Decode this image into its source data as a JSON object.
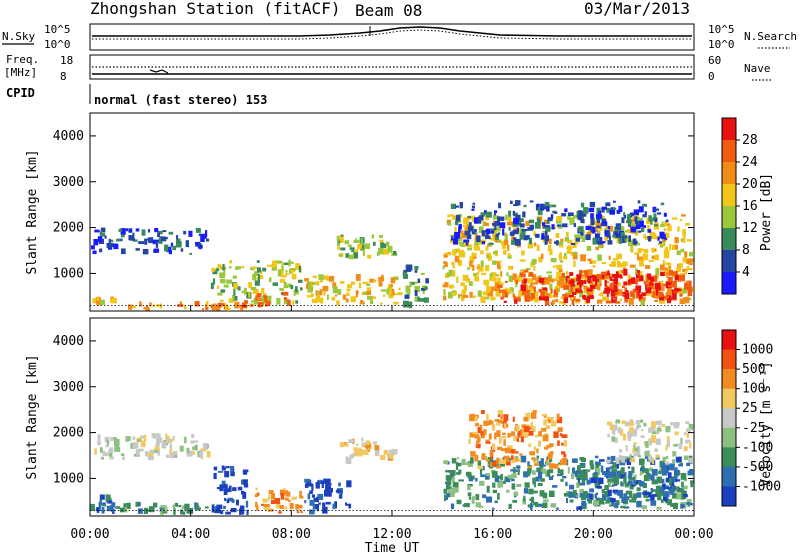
{
  "header": {
    "station": "Zhongshan Station (fitACF)",
    "beam": "Beam 08",
    "date": "03/Mar/2013"
  },
  "status": {
    "nsky_label": "N.Sky",
    "nsky_ticks": [
      "10^5",
      "10^0"
    ],
    "nsearch_label": "N.Search",
    "freq_label_line1": "Freq.",
    "freq_label_line2": "[MHz]",
    "freq_ticks": [
      "18",
      "8"
    ],
    "nave_label": "Nave",
    "nave_ticks": [
      "60",
      "0"
    ],
    "cpid_label": "CPID",
    "cpid_value": "normal (fast stereo) 153"
  },
  "chart_data": [
    {
      "type": "heatmap",
      "name": "power",
      "ylabel": "Slant Range [km]",
      "xlabel": "Time UT",
      "y_ticks": [
        1000,
        2000,
        3000,
        4000
      ],
      "ylim": [
        180,
        4500
      ],
      "x_ticks": [
        "00:00",
        "04:00",
        "08:00",
        "12:00",
        "16:00",
        "20:00",
        "00:00"
      ],
      "colorbar_label": "Power [dB]",
      "colorbar_ticks": [
        "4",
        "8",
        "12",
        "16",
        "20",
        "24",
        "28"
      ],
      "colorbar_colors": [
        "#1a1aff",
        "#2545a5",
        "#3a8a5a",
        "#9ac83a",
        "#f2c617",
        "#f28c17",
        "#f25c10",
        "#e81010"
      ],
      "regions": [
        {
          "t": [
            0.0,
            4.8
          ],
          "r": [
            1400,
            2000
          ],
          "level": 1
        },
        {
          "t": [
            0.0,
            1.2
          ],
          "r": [
            300,
            500
          ],
          "level": 4
        },
        {
          "t": [
            1.0,
            6.5
          ],
          "r": [
            180,
            400
          ],
          "level": 5
        },
        {
          "t": [
            4.8,
            8.5
          ],
          "r": [
            300,
            1300
          ],
          "level": 3
        },
        {
          "t": [
            6.0,
            8.0
          ],
          "r": [
            250,
            600
          ],
          "level": 6
        },
        {
          "t": [
            8.5,
            12.5
          ],
          "r": [
            300,
            1000
          ],
          "level": 4
        },
        {
          "t": [
            9.8,
            12.3
          ],
          "r": [
            1300,
            1900
          ],
          "level": 3
        },
        {
          "t": [
            12.4,
            13.5
          ],
          "r": [
            200,
            1200
          ],
          "level": 2
        },
        {
          "t": [
            14.0,
            24.0
          ],
          "r": [
            300,
            2300
          ],
          "level": 4
        },
        {
          "t": [
            16.0,
            24.0
          ],
          "r": [
            300,
            1100
          ],
          "level": 6
        },
        {
          "t": [
            19.0,
            23.5
          ],
          "r": [
            400,
            1000
          ],
          "level": 7
        },
        {
          "t": [
            14.3,
            23.0
          ],
          "r": [
            1600,
            2600
          ],
          "level": 1
        }
      ]
    },
    {
      "type": "heatmap",
      "name": "velocity",
      "ylabel": "Slant Range [km]",
      "xlabel": "Time UT",
      "y_ticks": [
        1000,
        2000,
        3000,
        4000
      ],
      "ylim": [
        180,
        4500
      ],
      "x_ticks": [
        "00:00",
        "04:00",
        "08:00",
        "12:00",
        "16:00",
        "20:00",
        "00:00"
      ],
      "colorbar_label": "Velocity [m s⁻¹]",
      "colorbar_ticks": [
        "1000",
        "500",
        "100",
        "25",
        "-25",
        "-100",
        "-500",
        "-1000"
      ],
      "colorbar_colors": [
        "#1a3fbf",
        "#2e6fb0",
        "#3c8c5a",
        "#8cc080",
        "#c8c8c8",
        "#f2c860",
        "#f28c20",
        "#f25010",
        "#e81010"
      ],
      "regions": [
        {
          "t": [
            0.0,
            4.8
          ],
          "r": [
            1400,
            2000
          ],
          "level": 4
        },
        {
          "t": [
            0.0,
            1.3
          ],
          "r": [
            200,
            700
          ],
          "level": 1
        },
        {
          "t": [
            1.0,
            5.0
          ],
          "r": [
            200,
            500
          ],
          "level": 2
        },
        {
          "t": [
            4.8,
            6.4
          ],
          "r": [
            200,
            1300
          ],
          "level": 0
        },
        {
          "t": [
            6.5,
            8.5
          ],
          "r": [
            200,
            800
          ],
          "level": 6
        },
        {
          "t": [
            8.5,
            10.5
          ],
          "r": [
            200,
            1000
          ],
          "level": 0
        },
        {
          "t": [
            9.8,
            12.3
          ],
          "r": [
            1300,
            1900
          ],
          "level": 5
        },
        {
          "t": [
            14.0,
            24.0
          ],
          "r": [
            300,
            1500
          ],
          "level": 2
        },
        {
          "t": [
            15.0,
            19.0
          ],
          "r": [
            1200,
            2500
          ],
          "level": 6
        },
        {
          "t": [
            19.0,
            24.0
          ],
          "r": [
            300,
            1500
          ],
          "level": 1
        },
        {
          "t": [
            20.5,
            24.0
          ],
          "r": [
            1300,
            2300
          ],
          "level": 4
        }
      ]
    }
  ]
}
